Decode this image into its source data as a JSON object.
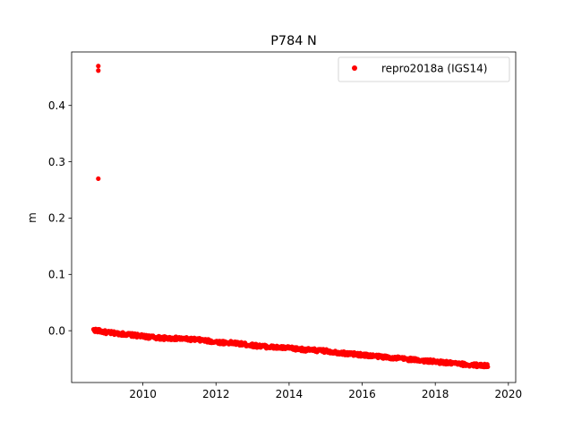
{
  "chart_data": {
    "type": "scatter",
    "title": "P784 N",
    "xlabel": "",
    "ylabel": "m",
    "xlim": [
      2008.05,
      2020.2
    ],
    "ylim": [
      -0.092,
      0.495
    ],
    "xticks": [
      2010,
      2012,
      2014,
      2016,
      2018,
      2020
    ],
    "xtick_labels": [
      "2010",
      "2012",
      "2014",
      "2016",
      "2018",
      "2020"
    ],
    "yticks": [
      0.0,
      0.1,
      0.2,
      0.3,
      0.4
    ],
    "ytick_labels": [
      "0.0",
      "0.1",
      "0.2",
      "0.3",
      "0.4"
    ],
    "grid": false,
    "legend_position": "top-right",
    "series": [
      {
        "name": "repro2018a (IGS14)",
        "color": "#ff0000",
        "marker": "circle",
        "start": 2008.65,
        "end": 2019.45,
        "y_start": 0.0,
        "y_end": -0.063,
        "sample_points": [
          [
            2008.7,
            0.001
          ],
          [
            2009.0,
            -0.003
          ],
          [
            2009.5,
            -0.006
          ],
          [
            2010.0,
            -0.01
          ],
          [
            2010.5,
            -0.013
          ],
          [
            2011.0,
            -0.014
          ],
          [
            2011.5,
            -0.016
          ],
          [
            2012.0,
            -0.02
          ],
          [
            2012.5,
            -0.022
          ],
          [
            2013.0,
            -0.026
          ],
          [
            2013.5,
            -0.029
          ],
          [
            2014.0,
            -0.031
          ],
          [
            2014.5,
            -0.034
          ],
          [
            2015.0,
            -0.036
          ],
          [
            2015.5,
            -0.04
          ],
          [
            2016.0,
            -0.043
          ],
          [
            2016.5,
            -0.046
          ],
          [
            2017.0,
            -0.049
          ],
          [
            2017.5,
            -0.052
          ],
          [
            2018.0,
            -0.055
          ],
          [
            2018.5,
            -0.058
          ],
          [
            2019.0,
            -0.061
          ],
          [
            2019.45,
            -0.062
          ]
        ],
        "outliers": [
          [
            2008.78,
            0.47
          ],
          [
            2008.78,
            0.462
          ],
          [
            2008.78,
            0.27
          ]
        ]
      }
    ]
  }
}
